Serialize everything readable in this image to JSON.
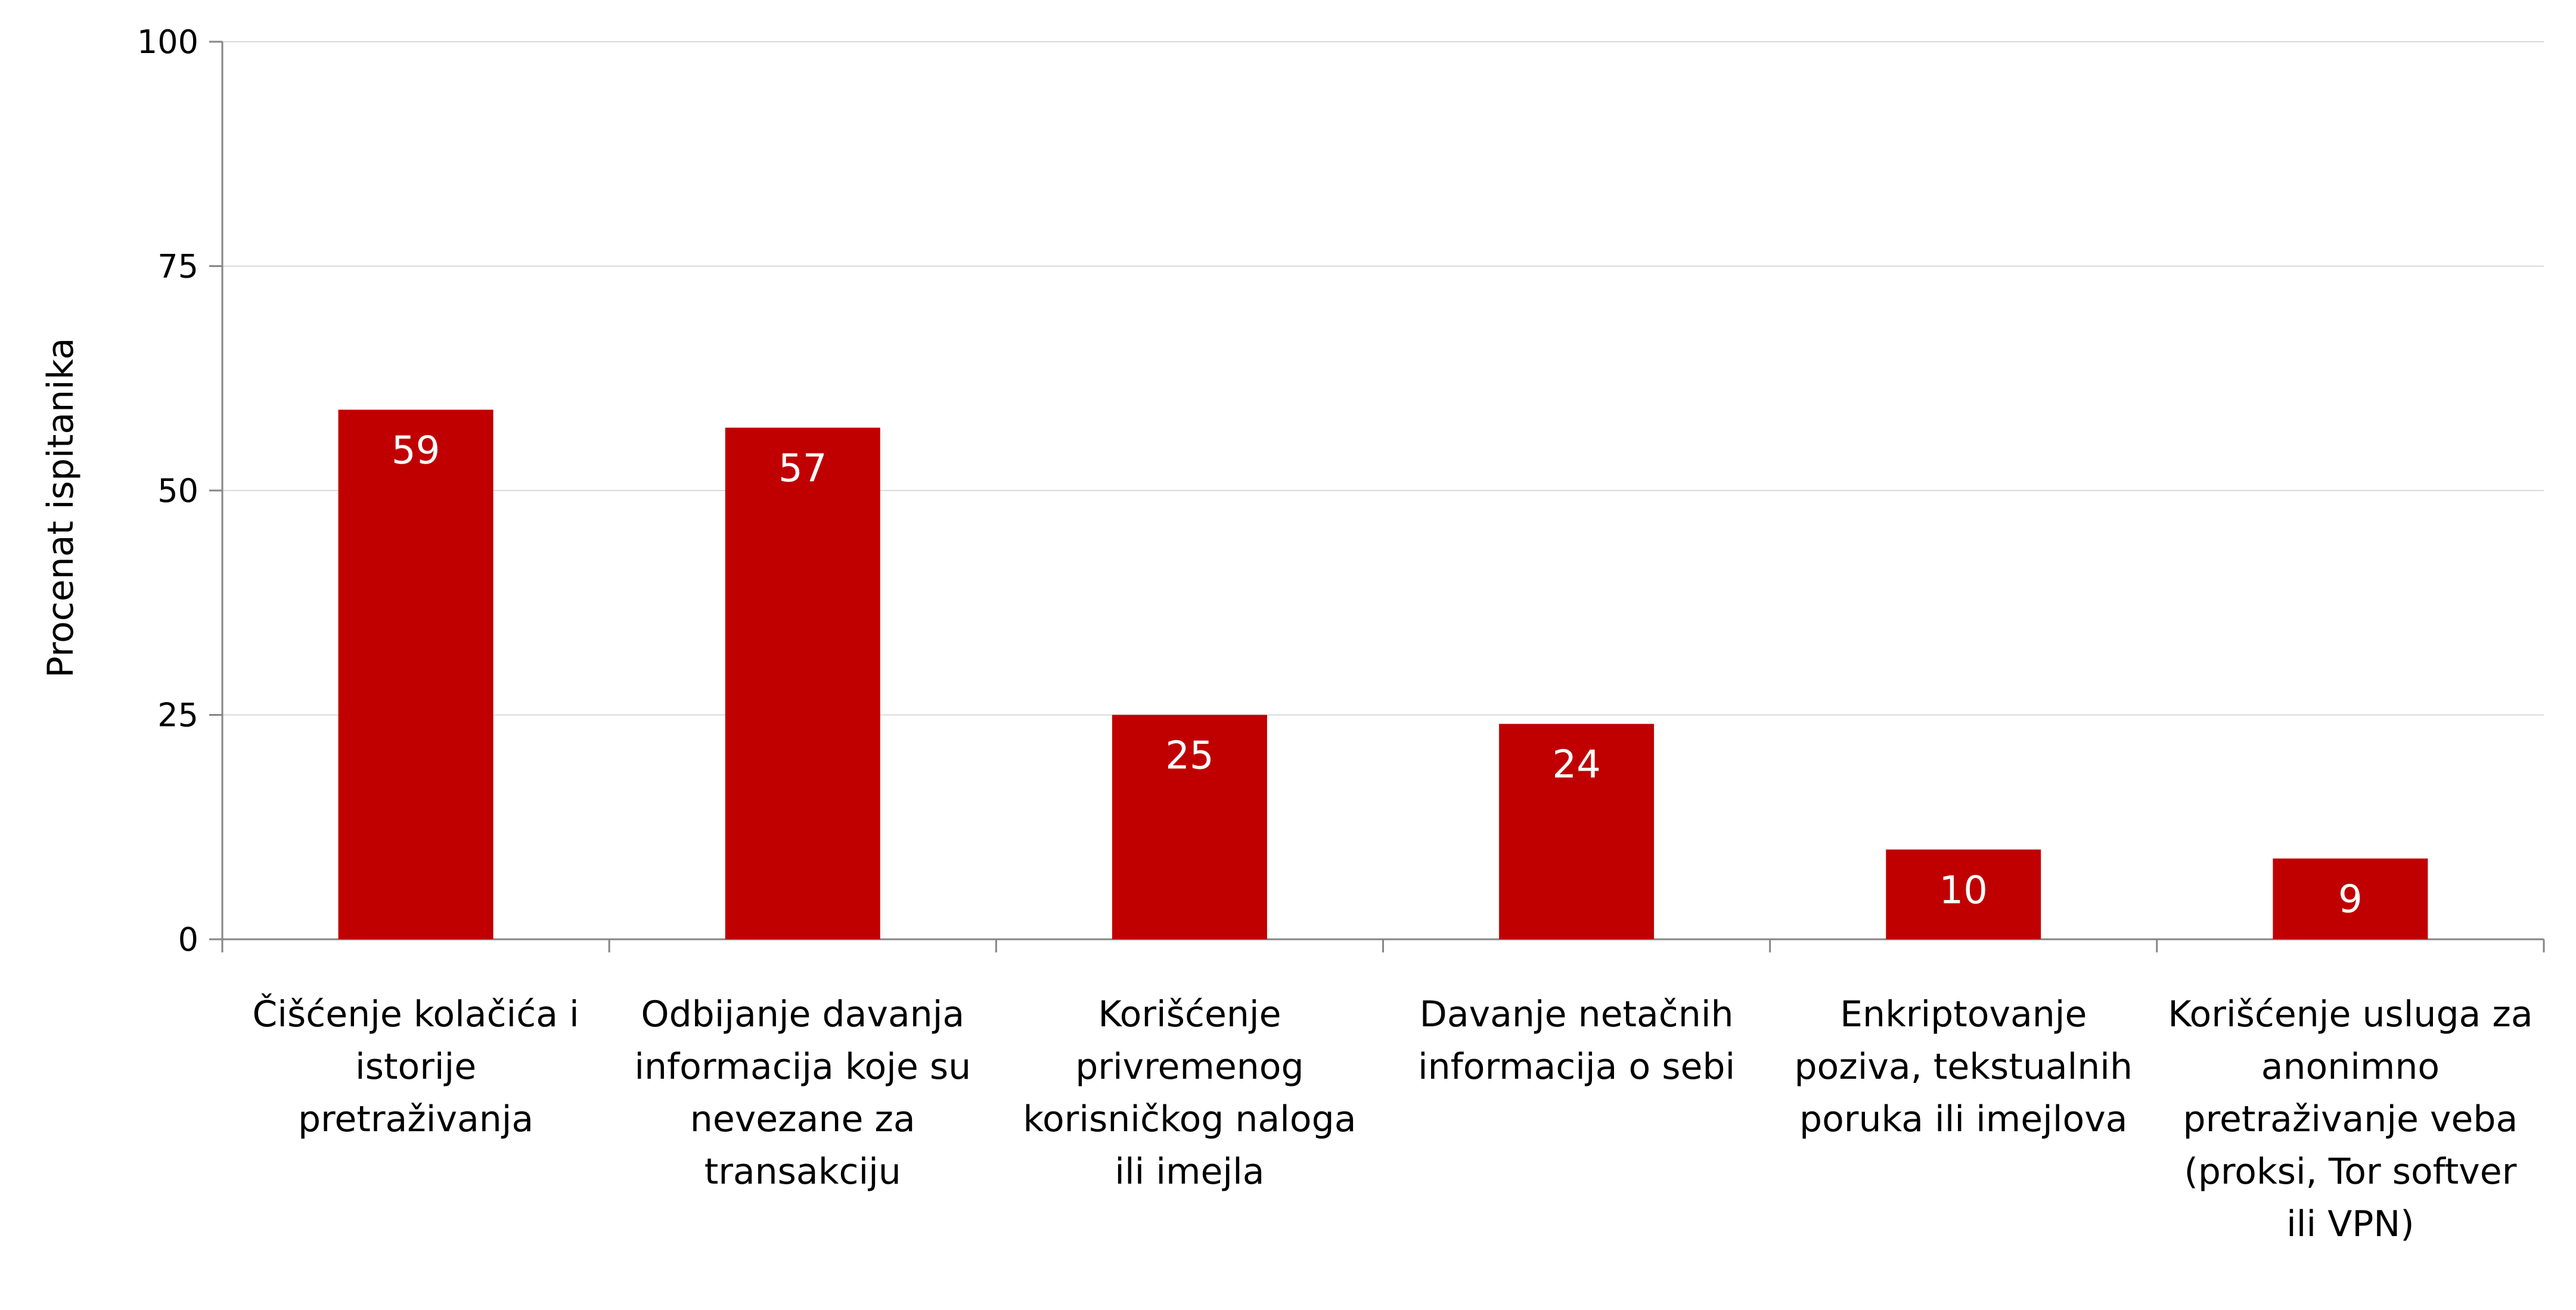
{
  "chart_data": {
    "type": "bar",
    "title": "",
    "xlabel": "",
    "ylabel": "Procenat ispitanika",
    "ylim": [
      0,
      100
    ],
    "yticks": [
      0,
      25,
      50,
      75,
      100
    ],
    "grid": true,
    "legend": "none",
    "bar_color": "#C00000",
    "categories": [
      [
        "Čišćenje kolačića i",
        "istorije",
        "pretraživanja"
      ],
      [
        "Odbijanje davanja",
        "informacija koje su",
        "nevezane za",
        "transakciju"
      ],
      [
        "Korišćenje",
        "privremenog",
        "korisničkog naloga",
        "ili imejla"
      ],
      [
        "Davanje netačnih",
        "informacija o sebi"
      ],
      [
        "Enkriptovanje",
        "poziva, tekstualnih",
        "poruka ili imejlova"
      ],
      [
        "Korišćenje usluga za",
        "anonimno",
        "pretraživanje veba",
        "(proksi, Tor softver",
        "ili VPN)"
      ]
    ],
    "values": [
      59,
      57,
      25,
      24,
      10,
      9
    ]
  }
}
